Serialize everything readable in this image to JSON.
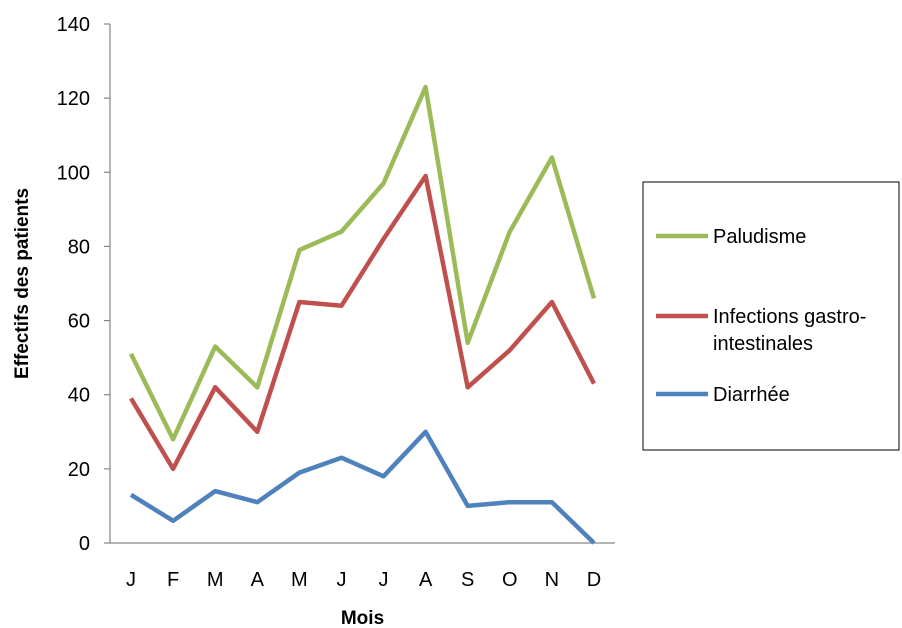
{
  "chart_data": {
    "type": "line",
    "title": "",
    "xlabel": "Mois",
    "ylabel": "Effectifs des patients",
    "categories": [
      "J",
      "F",
      "M",
      "A",
      "M",
      "J",
      "J",
      "A",
      "S",
      "O",
      "N",
      "D"
    ],
    "ylim": [
      0,
      140
    ],
    "yticks": [
      0,
      20,
      40,
      60,
      80,
      100,
      120,
      140
    ],
    "grid": false,
    "legend_position": "right",
    "series": [
      {
        "name": "Paludisme",
        "color": "#9BBB59",
        "values": [
          51,
          28,
          53,
          42,
          79,
          84,
          97,
          123,
          54,
          84,
          104,
          66
        ]
      },
      {
        "name": "Infections gastro-intestinales",
        "name_lines": [
          "Infections gastro-",
          "intestinales"
        ],
        "color": "#C0504D",
        "values": [
          39,
          20,
          42,
          30,
          65,
          64,
          82,
          99,
          42,
          52,
          65,
          43
        ]
      },
      {
        "name": "Diarrhée",
        "color": "#4F81BD",
        "values": [
          13,
          6,
          14,
          11,
          19,
          23,
          18,
          30,
          10,
          11,
          11,
          0
        ]
      }
    ]
  }
}
